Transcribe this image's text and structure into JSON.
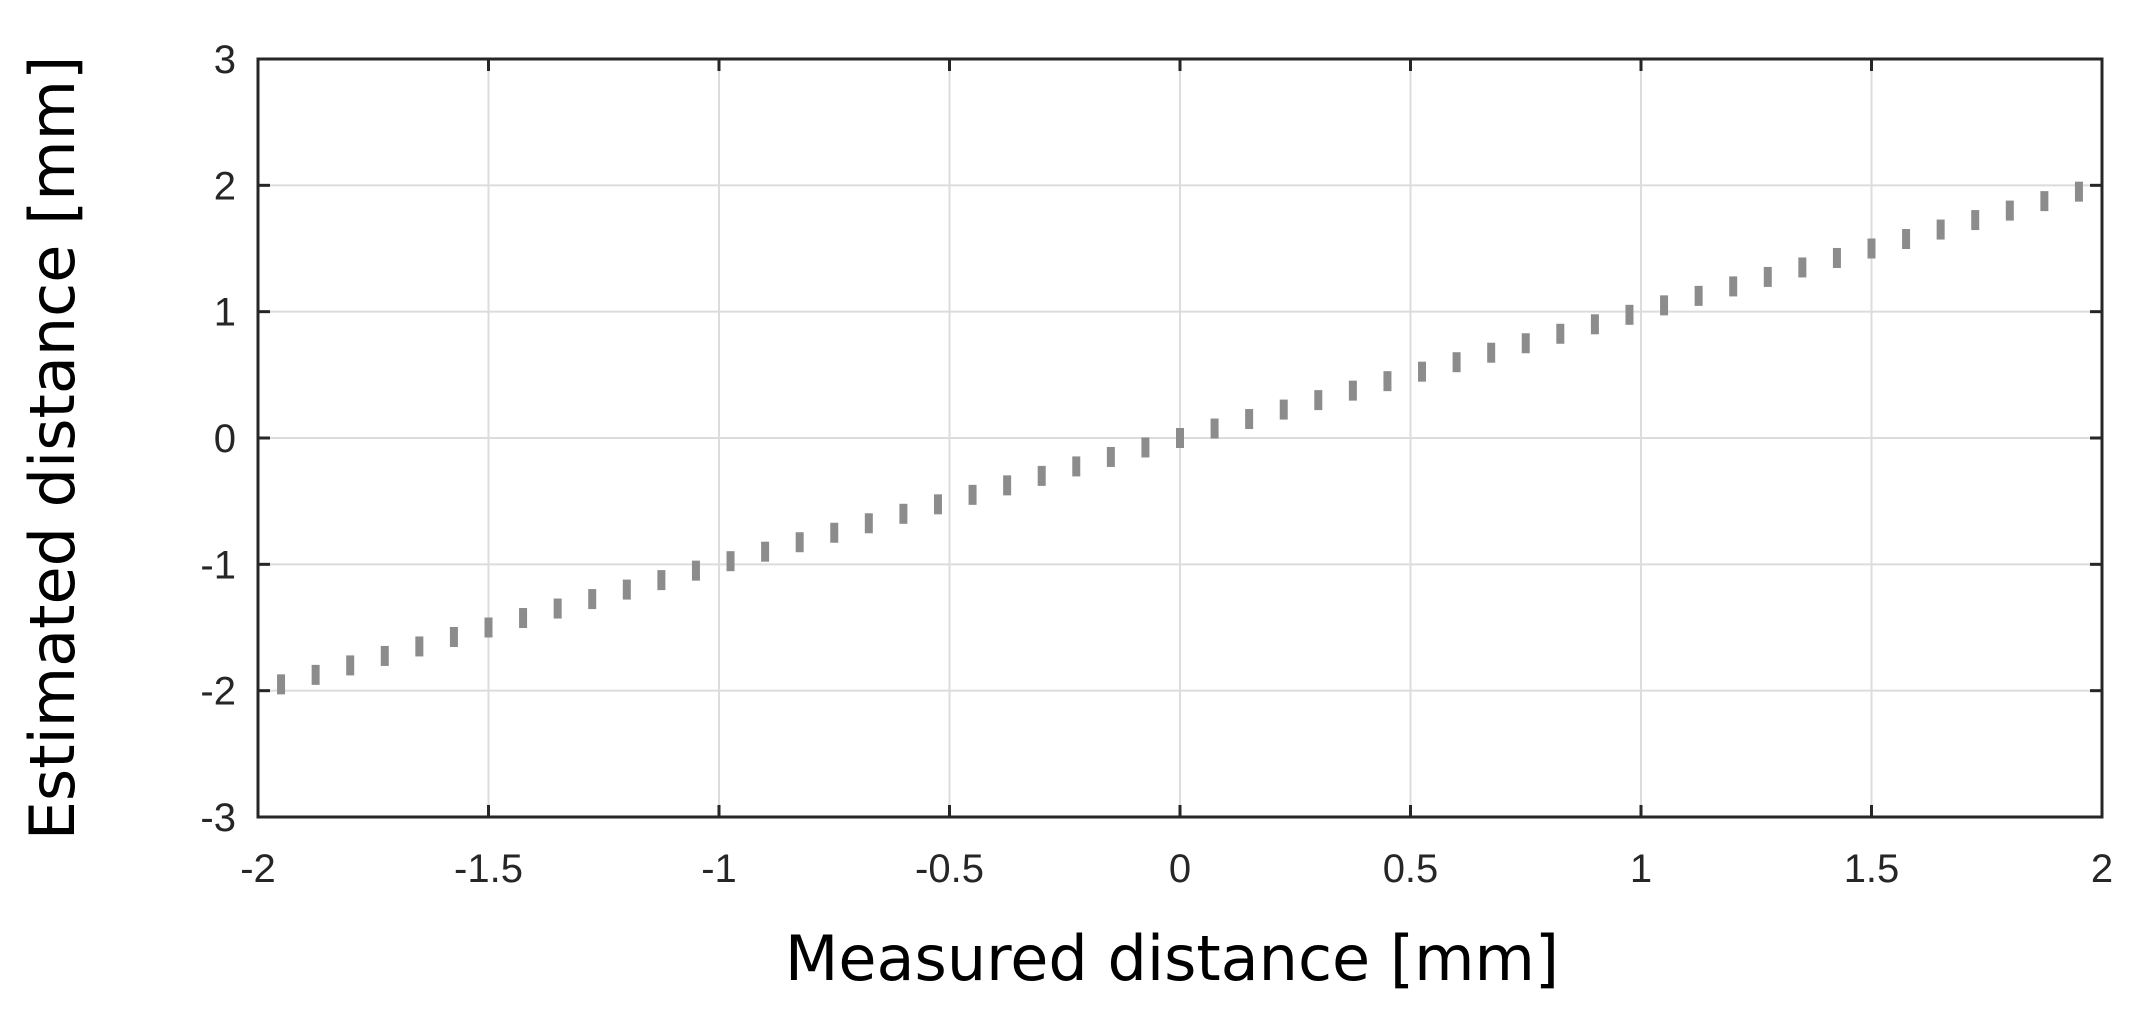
{
  "chart_data": {
    "type": "scatter",
    "xlabel": "Measured distance [mm]",
    "ylabel": "Estimated distance [mm]",
    "xlim": [
      -2,
      2
    ],
    "ylim": [
      -3,
      3
    ],
    "xticks": [
      "-2",
      "-1.5",
      "-1",
      "-0.5",
      "0",
      "0.5",
      "1",
      "1.5",
      "2"
    ],
    "yticks": [
      "3",
      "2",
      "1",
      "0",
      "-1",
      "-2",
      "-3"
    ],
    "grid": true,
    "marker_color": "#8c8c8c",
    "series": [
      {
        "x": [
          -1.95,
          -1.875,
          -1.8,
          -1.725,
          -1.65,
          -1.575,
          -1.5,
          -1.425,
          -1.35,
          -1.275,
          -1.2,
          -1.125,
          -1.05,
          -0.975,
          -0.9,
          -0.825,
          -0.75,
          -0.675,
          -0.6,
          -0.525,
          -0.45,
          -0.375,
          -0.3,
          -0.225,
          -0.15,
          -0.075,
          0.0,
          0.075,
          0.15,
          0.225,
          0.3,
          0.375,
          0.45,
          0.525,
          0.6,
          0.675,
          0.75,
          0.825,
          0.9,
          0.975,
          1.05,
          1.125,
          1.2,
          1.275,
          1.35,
          1.425,
          1.5,
          1.575,
          1.65,
          1.725,
          1.8,
          1.875,
          1.95
        ],
        "y": [
          -1.95,
          -1.875,
          -1.8,
          -1.725,
          -1.65,
          -1.575,
          -1.5,
          -1.425,
          -1.35,
          -1.275,
          -1.2,
          -1.125,
          -1.05,
          -0.975,
          -0.9,
          -0.825,
          -0.75,
          -0.675,
          -0.6,
          -0.525,
          -0.45,
          -0.375,
          -0.3,
          -0.225,
          -0.15,
          -0.075,
          0.0,
          0.075,
          0.15,
          0.225,
          0.3,
          0.375,
          0.45,
          0.525,
          0.6,
          0.675,
          0.75,
          0.825,
          0.9,
          0.975,
          1.05,
          1.125,
          1.2,
          1.275,
          1.35,
          1.425,
          1.5,
          1.575,
          1.65,
          1.725,
          1.8,
          1.875,
          1.95
        ]
      }
    ]
  }
}
